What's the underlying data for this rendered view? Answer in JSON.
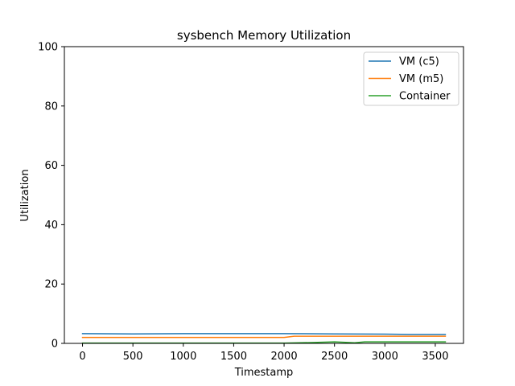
{
  "chart_data": {
    "type": "line",
    "title": "sysbench Memory Utilization",
    "xlabel": "Timestamp",
    "ylabel": "Utilization",
    "xlim": [
      -180,
      3780
    ],
    "ylim": [
      0,
      100
    ],
    "xticks": [
      0,
      500,
      1000,
      1500,
      2000,
      2500,
      3000,
      3500
    ],
    "yticks": [
      0,
      20,
      40,
      60,
      80,
      100
    ],
    "grid": false,
    "legend_position": "top-right",
    "series": [
      {
        "name": "VM (c5)",
        "color": "#1f77b4",
        "x": [
          0,
          500,
          1000,
          1500,
          2000,
          2500,
          3000,
          3300,
          3600
        ],
        "y": [
          3.3,
          3.2,
          3.3,
          3.3,
          3.3,
          3.2,
          3.1,
          3.0,
          3.0
        ]
      },
      {
        "name": "VM (m5)",
        "color": "#ff7f0e",
        "x": [
          0,
          500,
          1000,
          1500,
          2000,
          2100,
          2500,
          3000,
          3600
        ],
        "y": [
          2.0,
          2.0,
          2.0,
          2.0,
          2.0,
          2.4,
          2.4,
          2.4,
          2.4
        ]
      },
      {
        "name": "Container",
        "color": "#2ca02c",
        "x": [
          0,
          500,
          1000,
          1500,
          2000,
          2300,
          2500,
          2700,
          2800,
          3000,
          3600
        ],
        "y": [
          0.1,
          0.1,
          0.1,
          0.1,
          0.1,
          0.3,
          0.5,
          0.2,
          0.5,
          0.5,
          0.5
        ]
      }
    ]
  }
}
